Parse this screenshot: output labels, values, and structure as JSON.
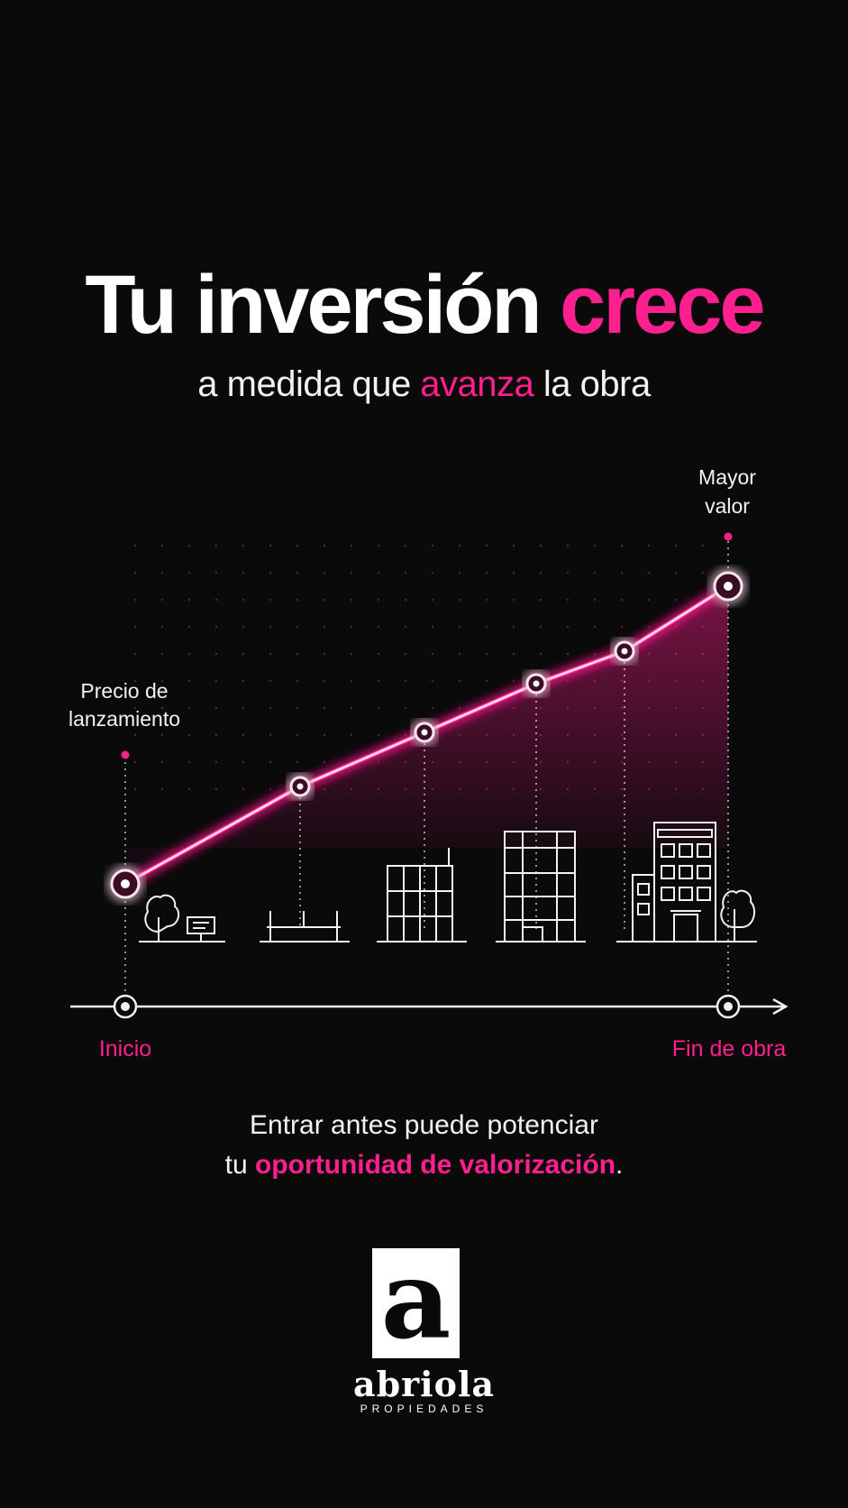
{
  "title": {
    "part1": "Tu inversión ",
    "part2": "crece"
  },
  "subtitle": {
    "part1": "a medida que ",
    "part2": "avanza",
    "part3": " la obra"
  },
  "chart_data": {
    "type": "line",
    "title": "Tu inversión crece",
    "xlabel": "",
    "ylabel": "",
    "axis_start_label": "Inicio",
    "axis_end_label": "Fin de obra",
    "x": [
      1,
      2,
      3,
      4,
      5,
      6
    ],
    "series": [
      {
        "values": [
          20,
          38,
          48,
          57,
          63,
          75
        ]
      }
    ],
    "xlim": [
      1,
      6
    ],
    "ylim": [
      0,
      100
    ],
    "start_annotation": [
      "Precio de",
      "lanzamiento"
    ],
    "end_annotation": [
      "Mayor",
      "valor"
    ],
    "grid": "dotted",
    "legend": "none"
  },
  "colors": {
    "accent": "#ff1f8e",
    "background": "#0a0a0a",
    "text": "#f2f2f2"
  },
  "icons": [
    "tree-icon",
    "sign-icon",
    "building-foundation-icon",
    "building-frame-icon",
    "building-structure-icon",
    "building-finished-icon"
  ],
  "footer": {
    "line1": "Entrar antes puede potenciar",
    "line2_part1": "tu ",
    "line2_part2": "oportunidad de valorización",
    "line2_part3": "."
  },
  "logo": {
    "letter": "a",
    "name": "abriola",
    "sub": "PROPIEDADES"
  }
}
